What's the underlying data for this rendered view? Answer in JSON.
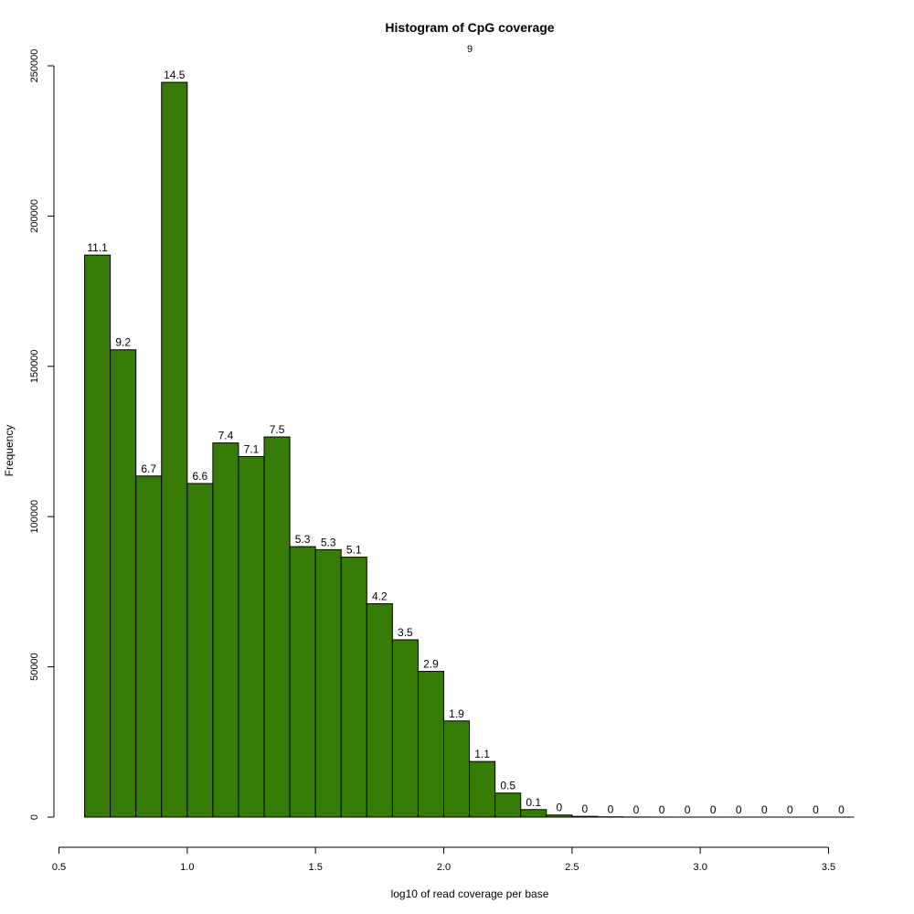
{
  "chart_data": {
    "type": "bar",
    "title": "Histogram of CpG coverage",
    "subtitle": "9",
    "xlabel": "log10 of read coverage per base",
    "ylabel": "Frequency",
    "xlim": [
      0.5,
      3.6
    ],
    "ylim": [
      0,
      250000
    ],
    "xticks": [
      0.5,
      1.0,
      1.5,
      2.0,
      2.5,
      3.0,
      3.5
    ],
    "xtick_labels": [
      "0.5",
      "1.0",
      "1.5",
      "2.0",
      "2.5",
      "3.0",
      "3.5"
    ],
    "yticks": [
      0,
      50000,
      100000,
      150000,
      200000,
      250000
    ],
    "ytick_labels": [
      "0",
      "50000",
      "100000",
      "150000",
      "200000",
      "250000"
    ],
    "bar_color": "#367b06",
    "bins": [
      {
        "x0": 0.6,
        "x1": 0.7,
        "value": 187000,
        "label": "11.1"
      },
      {
        "x0": 0.7,
        "x1": 0.8,
        "value": 155500,
        "label": "9.2"
      },
      {
        "x0": 0.8,
        "x1": 0.9,
        "value": 113500,
        "label": "6.7"
      },
      {
        "x0": 0.9,
        "x1": 1.0,
        "value": 244500,
        "label": "14.5"
      },
      {
        "x0": 1.0,
        "x1": 1.1,
        "value": 111000,
        "label": "6.6"
      },
      {
        "x0": 1.1,
        "x1": 1.2,
        "value": 124500,
        "label": "7.4"
      },
      {
        "x0": 1.2,
        "x1": 1.3,
        "value": 120000,
        "label": "7.1"
      },
      {
        "x0": 1.3,
        "x1": 1.4,
        "value": 126500,
        "label": "7.5"
      },
      {
        "x0": 1.4,
        "x1": 1.5,
        "value": 90000,
        "label": "5.3"
      },
      {
        "x0": 1.5,
        "x1": 1.6,
        "value": 89000,
        "label": "5.3"
      },
      {
        "x0": 1.6,
        "x1": 1.7,
        "value": 86500,
        "label": "5.1"
      },
      {
        "x0": 1.7,
        "x1": 1.8,
        "value": 71000,
        "label": "4.2"
      },
      {
        "x0": 1.8,
        "x1": 1.9,
        "value": 59000,
        "label": "3.5"
      },
      {
        "x0": 1.9,
        "x1": 2.0,
        "value": 48500,
        "label": "2.9"
      },
      {
        "x0": 2.0,
        "x1": 2.1,
        "value": 32000,
        "label": "1.9"
      },
      {
        "x0": 2.1,
        "x1": 2.2,
        "value": 18500,
        "label": "1.1"
      },
      {
        "x0": 2.2,
        "x1": 2.3,
        "value": 8000,
        "label": "0.5"
      },
      {
        "x0": 2.3,
        "x1": 2.4,
        "value": 2500,
        "label": "0.1"
      },
      {
        "x0": 2.4,
        "x1": 2.5,
        "value": 700,
        "label": "0"
      },
      {
        "x0": 2.5,
        "x1": 2.6,
        "value": 250,
        "label": "0"
      },
      {
        "x0": 2.6,
        "x1": 2.7,
        "value": 100,
        "label": "0"
      },
      {
        "x0": 2.7,
        "x1": 2.8,
        "value": 40,
        "label": "0"
      },
      {
        "x0": 2.8,
        "x1": 2.9,
        "value": 20,
        "label": "0"
      },
      {
        "x0": 2.9,
        "x1": 3.0,
        "value": 10,
        "label": "0"
      },
      {
        "x0": 3.0,
        "x1": 3.1,
        "value": 5,
        "label": "0"
      },
      {
        "x0": 3.1,
        "x1": 3.2,
        "value": 3,
        "label": "0"
      },
      {
        "x0": 3.2,
        "x1": 3.3,
        "value": 2,
        "label": "0"
      },
      {
        "x0": 3.3,
        "x1": 3.4,
        "value": 1,
        "label": "0"
      },
      {
        "x0": 3.4,
        "x1": 3.5,
        "value": 1,
        "label": "0"
      },
      {
        "x0": 3.5,
        "x1": 3.6,
        "value": 0,
        "label": "0"
      }
    ]
  }
}
